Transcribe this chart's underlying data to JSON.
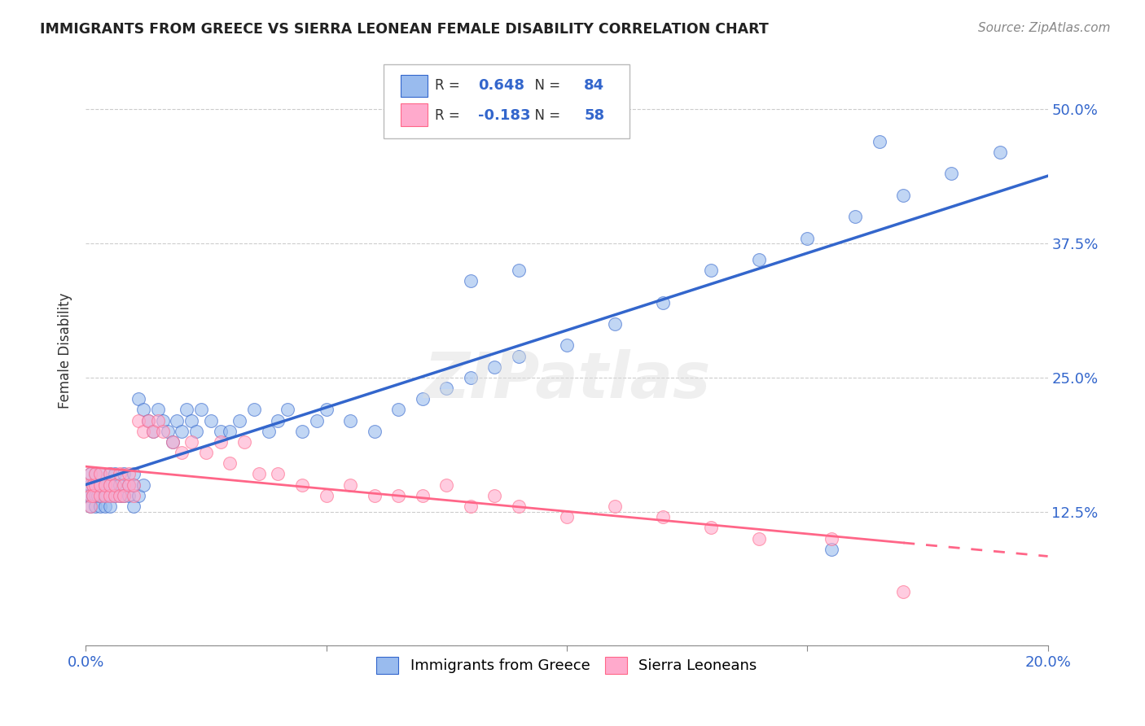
{
  "title": "IMMIGRANTS FROM GREECE VS SIERRA LEONEAN FEMALE DISABILITY CORRELATION CHART",
  "source": "Source: ZipAtlas.com",
  "ylabel": "Female Disability",
  "xlim": [
    0.0,
    0.2
  ],
  "ylim": [
    0.0,
    0.55
  ],
  "r_greece": 0.648,
  "n_greece": 84,
  "r_sierra": -0.183,
  "n_sierra": 58,
  "blue_color": "#99BBEE",
  "pink_color": "#FFAACC",
  "trendline_blue": "#3366CC",
  "trendline_pink": "#FF6688",
  "watermark": "ZIPatlas",
  "greece_x": [
    0.0005,
    0.001,
    0.001,
    0.001,
    0.001,
    0.0015,
    0.0015,
    0.002,
    0.002,
    0.002,
    0.0025,
    0.0025,
    0.003,
    0.003,
    0.003,
    0.003,
    0.004,
    0.004,
    0.004,
    0.005,
    0.005,
    0.005,
    0.005,
    0.006,
    0.006,
    0.006,
    0.007,
    0.007,
    0.008,
    0.008,
    0.009,
    0.009,
    0.01,
    0.01,
    0.01,
    0.011,
    0.011,
    0.012,
    0.012,
    0.013,
    0.014,
    0.015,
    0.016,
    0.017,
    0.018,
    0.019,
    0.02,
    0.021,
    0.022,
    0.023,
    0.024,
    0.026,
    0.028,
    0.03,
    0.032,
    0.035,
    0.038,
    0.04,
    0.042,
    0.045,
    0.048,
    0.05,
    0.055,
    0.06,
    0.065,
    0.07,
    0.075,
    0.08,
    0.085,
    0.09,
    0.1,
    0.11,
    0.12,
    0.13,
    0.14,
    0.15,
    0.16,
    0.17,
    0.18,
    0.19,
    0.08,
    0.09,
    0.155,
    0.165
  ],
  "greece_y": [
    0.14,
    0.13,
    0.15,
    0.14,
    0.16,
    0.14,
    0.15,
    0.13,
    0.14,
    0.16,
    0.15,
    0.14,
    0.13,
    0.15,
    0.14,
    0.16,
    0.14,
    0.15,
    0.13,
    0.15,
    0.14,
    0.16,
    0.13,
    0.14,
    0.15,
    0.16,
    0.14,
    0.15,
    0.14,
    0.16,
    0.15,
    0.14,
    0.13,
    0.15,
    0.16,
    0.14,
    0.23,
    0.15,
    0.22,
    0.21,
    0.2,
    0.22,
    0.21,
    0.2,
    0.19,
    0.21,
    0.2,
    0.22,
    0.21,
    0.2,
    0.22,
    0.21,
    0.2,
    0.2,
    0.21,
    0.22,
    0.2,
    0.21,
    0.22,
    0.2,
    0.21,
    0.22,
    0.21,
    0.2,
    0.22,
    0.23,
    0.24,
    0.25,
    0.26,
    0.27,
    0.28,
    0.3,
    0.32,
    0.35,
    0.36,
    0.38,
    0.4,
    0.42,
    0.44,
    0.46,
    0.34,
    0.35,
    0.09,
    0.47
  ],
  "sierra_x": [
    0.0005,
    0.001,
    0.001,
    0.001,
    0.0015,
    0.0015,
    0.002,
    0.002,
    0.003,
    0.003,
    0.003,
    0.004,
    0.004,
    0.005,
    0.005,
    0.005,
    0.006,
    0.006,
    0.007,
    0.007,
    0.008,
    0.008,
    0.009,
    0.009,
    0.01,
    0.01,
    0.011,
    0.012,
    0.013,
    0.014,
    0.015,
    0.016,
    0.018,
    0.02,
    0.022,
    0.025,
    0.028,
    0.03,
    0.033,
    0.036,
    0.04,
    0.045,
    0.05,
    0.055,
    0.06,
    0.065,
    0.07,
    0.075,
    0.08,
    0.085,
    0.09,
    0.1,
    0.11,
    0.12,
    0.13,
    0.14,
    0.155,
    0.17
  ],
  "sierra_y": [
    0.15,
    0.14,
    0.16,
    0.13,
    0.15,
    0.14,
    0.15,
    0.16,
    0.14,
    0.15,
    0.16,
    0.14,
    0.15,
    0.14,
    0.15,
    0.16,
    0.14,
    0.15,
    0.14,
    0.16,
    0.15,
    0.14,
    0.15,
    0.16,
    0.14,
    0.15,
    0.21,
    0.2,
    0.21,
    0.2,
    0.21,
    0.2,
    0.19,
    0.18,
    0.19,
    0.18,
    0.19,
    0.17,
    0.19,
    0.16,
    0.16,
    0.15,
    0.14,
    0.15,
    0.14,
    0.14,
    0.14,
    0.15,
    0.13,
    0.14,
    0.13,
    0.12,
    0.13,
    0.12,
    0.11,
    0.1,
    0.1,
    0.05
  ]
}
